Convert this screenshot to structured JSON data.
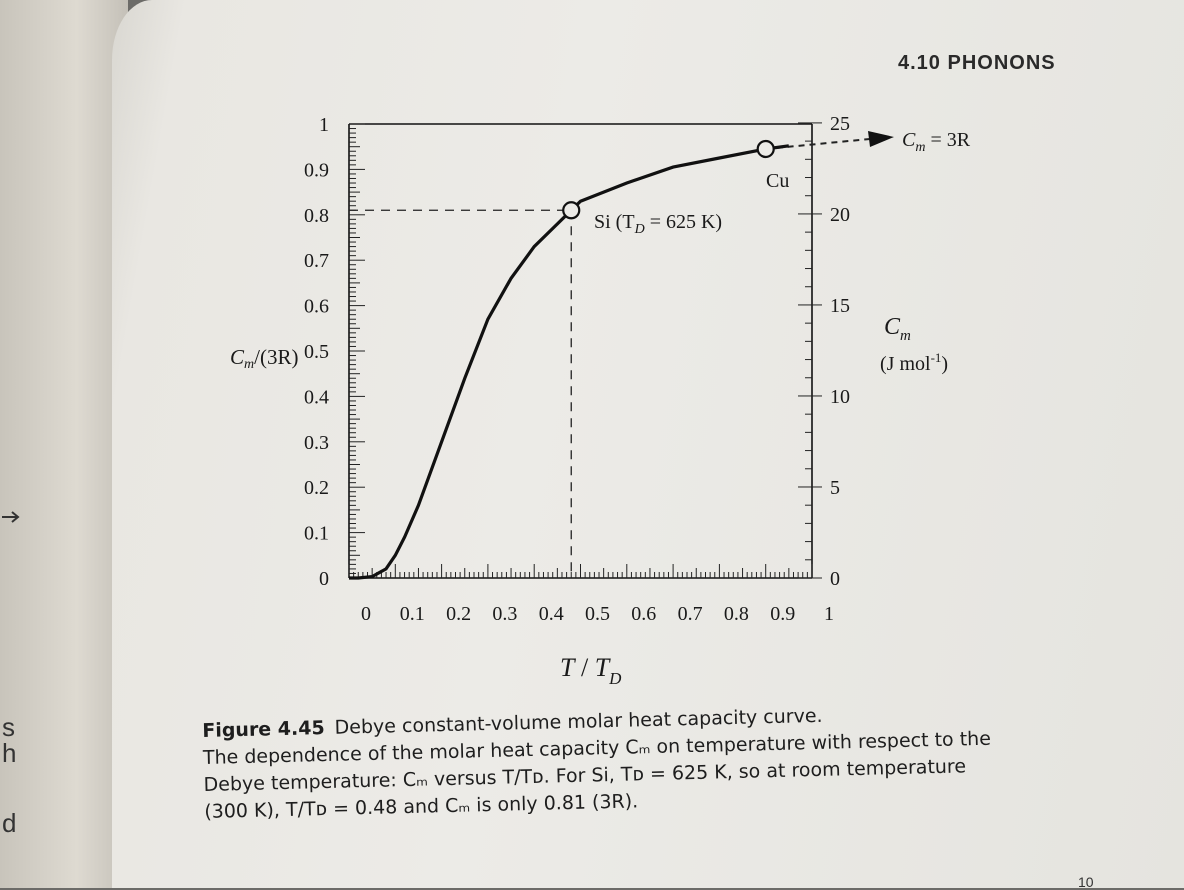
{
  "header": {
    "section": "4.10 PHONONS"
  },
  "left_page_fragments": [
    "s",
    "h",
    "d"
  ],
  "chart_data": {
    "type": "line",
    "xlabel": "T / T_D",
    "ylabel_left": "C_m/(3R)",
    "ylabel_right": "C_m (J mol^-1)",
    "x_ticks": [
      0,
      0.1,
      0.2,
      0.3,
      0.4,
      0.5,
      0.6,
      0.7,
      0.8,
      0.9,
      1
    ],
    "y_ticks_left": [
      0,
      0.1,
      0.2,
      0.3,
      0.4,
      0.5,
      0.6,
      0.7,
      0.8,
      0.9,
      1
    ],
    "y_ticks_right": [
      0,
      5,
      10,
      15,
      20,
      25
    ],
    "xlim": [
      0,
      1
    ],
    "ylim_left": [
      0,
      1
    ],
    "ylim_right": [
      0,
      24.94
    ],
    "series": [
      {
        "x": [
          0,
          0.02,
          0.05,
          0.08,
          0.1,
          0.12,
          0.15,
          0.2,
          0.25,
          0.3,
          0.35,
          0.4,
          0.45,
          0.48,
          0.5,
          0.6,
          0.7,
          0.8,
          0.9,
          0.95
        ],
        "y": [
          0,
          0.0,
          0.003,
          0.02,
          0.05,
          0.09,
          0.16,
          0.3,
          0.44,
          0.57,
          0.66,
          0.73,
          0.78,
          0.81,
          0.83,
          0.87,
          0.905,
          0.925,
          0.945,
          0.952
        ]
      }
    ],
    "annotations": {
      "si": {
        "label_prefix": "Si (T",
        "label_sub": "D",
        "label_suffix": " = 625 K)",
        "x": 0.48,
        "y": 0.81
      },
      "cu": {
        "label": "Cu",
        "x": 0.9,
        "y": 0.945
      },
      "limit": {
        "label_prefix": "C",
        "label_sub": "m",
        "label_suffix": " = 3R"
      }
    },
    "grid": false
  },
  "labels": {
    "ylabel_left_c": "C",
    "ylabel_left_m": "m",
    "ylabel_left_rest": "/(3R)",
    "ylabel_right_c": "C",
    "ylabel_right_m": "m",
    "ylabel_right_units": "(J mol",
    "ylabel_right_sup": "-1",
    "ylabel_right_close": ")",
    "xlabel_t": "T",
    "xlabel_slash": " / ",
    "xlabel_td": "T",
    "xlabel_sub": "D"
  },
  "caption": {
    "figure_label": "Figure 4.45",
    "title": "Debye constant-volume molar heat capacity curve.",
    "line2": "The dependence of the molar heat capacity Cₘ on temperature with respect to the",
    "line3": "Debye temperature: Cₘ versus T/Tᴅ. For Si, Tᴅ = 625 K, so at room temperature",
    "line4": "(300 K), T/Tᴅ = 0.48 and Cₘ is only 0.81 (3R)."
  },
  "page_number": "10"
}
